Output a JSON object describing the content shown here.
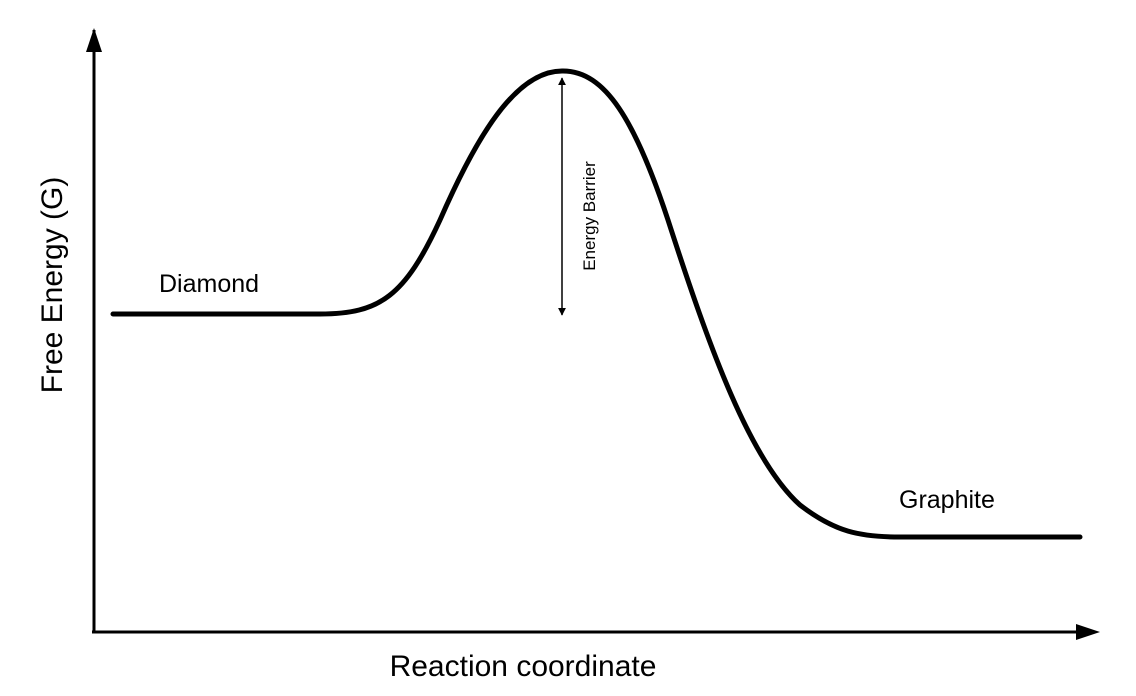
{
  "axes": {
    "x_label": "Reaction coordinate",
    "y_label": "Free Energy (G)"
  },
  "states": {
    "initial": "Diamond",
    "final": "Graphite"
  },
  "barrier": {
    "label": "Energy Barrier"
  },
  "colors": {
    "line": "#000000",
    "background": "#ffffff"
  }
}
